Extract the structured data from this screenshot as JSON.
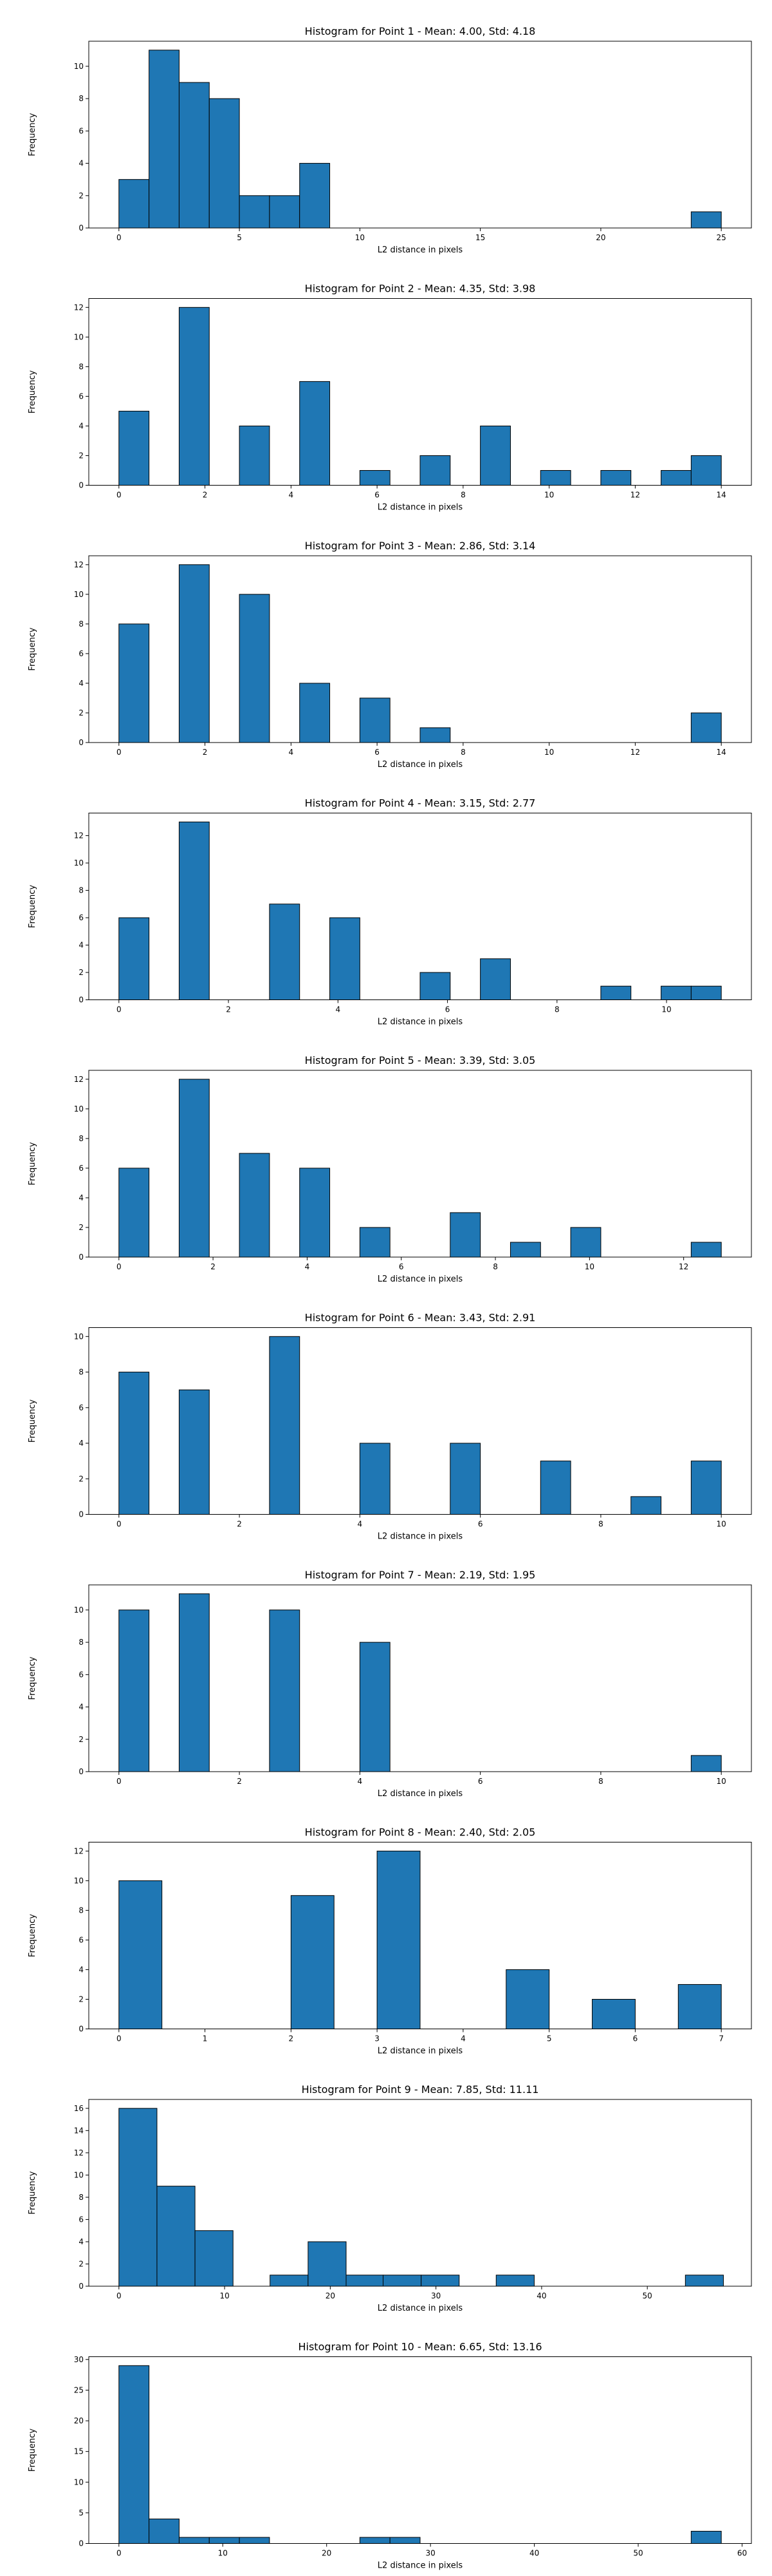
{
  "chart_data": [
    {
      "type": "bar",
      "title": "Histogram for Point 1 - Mean: 4.00, Std: 4.18",
      "xlabel": "L2 distance in pixels",
      "ylabel": "Frequency",
      "xlim": [
        -1.25,
        26.25
      ],
      "ylim": [
        0,
        11.55
      ],
      "xticks": [
        0,
        5,
        10,
        15,
        20,
        25
      ],
      "yticks": [
        0,
        2,
        4,
        6,
        8,
        10
      ],
      "bins": [
        {
          "x0": 0.0,
          "x1": 1.25,
          "count": 3
        },
        {
          "x0": 1.25,
          "x1": 2.5,
          "count": 11
        },
        {
          "x0": 2.5,
          "x1": 3.75,
          "count": 9
        },
        {
          "x0": 3.75,
          "x1": 5.0,
          "count": 8
        },
        {
          "x0": 5.0,
          "x1": 6.25,
          "count": 2
        },
        {
          "x0": 6.25,
          "x1": 7.5,
          "count": 2
        },
        {
          "x0": 7.5,
          "x1": 8.75,
          "count": 4
        },
        {
          "x0": 23.75,
          "x1": 25.0,
          "count": 1
        }
      ]
    },
    {
      "type": "bar",
      "title": "Histogram for Point 2 - Mean: 4.35, Std: 3.98",
      "xlabel": "L2 distance in pixels",
      "ylabel": "Frequency",
      "xlim": [
        -0.7,
        14.7
      ],
      "ylim": [
        0,
        12.6
      ],
      "xticks": [
        0,
        2,
        4,
        6,
        8,
        10,
        12,
        14
      ],
      "yticks": [
        0,
        2,
        4,
        6,
        8,
        10,
        12
      ],
      "bins": [
        {
          "x0": 0.0,
          "x1": 0.7,
          "count": 5
        },
        {
          "x0": 1.4,
          "x1": 2.1,
          "count": 12
        },
        {
          "x0": 2.8,
          "x1": 3.5,
          "count": 4
        },
        {
          "x0": 4.2,
          "x1": 4.9,
          "count": 7
        },
        {
          "x0": 5.6,
          "x1": 6.3,
          "count": 1
        },
        {
          "x0": 7.0,
          "x1": 7.7,
          "count": 2
        },
        {
          "x0": 8.4,
          "x1": 9.1,
          "count": 4
        },
        {
          "x0": 9.8,
          "x1": 10.5,
          "count": 1
        },
        {
          "x0": 11.2,
          "x1": 11.9,
          "count": 1
        },
        {
          "x0": 12.6,
          "x1": 13.3,
          "count": 1
        },
        {
          "x0": 13.3,
          "x1": 14.0,
          "count": 2
        }
      ]
    },
    {
      "type": "bar",
      "title": "Histogram for Point 3 - Mean: 2.86, Std: 3.14",
      "xlabel": "L2 distance in pixels",
      "ylabel": "Frequency",
      "xlim": [
        -0.7,
        14.7
      ],
      "ylim": [
        0,
        12.6
      ],
      "xticks": [
        0,
        2,
        4,
        6,
        8,
        10,
        12,
        14
      ],
      "yticks": [
        0,
        2,
        4,
        6,
        8,
        10,
        12
      ],
      "bins": [
        {
          "x0": 0.0,
          "x1": 0.7,
          "count": 8
        },
        {
          "x0": 1.4,
          "x1": 2.1,
          "count": 12
        },
        {
          "x0": 2.8,
          "x1": 3.5,
          "count": 10
        },
        {
          "x0": 4.2,
          "x1": 4.9,
          "count": 4
        },
        {
          "x0": 5.6,
          "x1": 6.3,
          "count": 3
        },
        {
          "x0": 7.0,
          "x1": 7.7,
          "count": 1
        },
        {
          "x0": 13.3,
          "x1": 14.0,
          "count": 2
        }
      ]
    },
    {
      "type": "bar",
      "title": "Histogram for Point 4 - Mean: 3.15, Std: 2.77",
      "xlabel": "L2 distance in pixels",
      "ylabel": "Frequency",
      "xlim": [
        -0.55,
        11.55
      ],
      "ylim": [
        0,
        13.65
      ],
      "xticks": [
        0,
        2,
        4,
        6,
        8,
        10
      ],
      "yticks": [
        0,
        2,
        4,
        6,
        8,
        10,
        12
      ],
      "bins": [
        {
          "x0": 0.0,
          "x1": 0.55,
          "count": 6
        },
        {
          "x0": 1.1,
          "x1": 1.65,
          "count": 13
        },
        {
          "x0": 2.75,
          "x1": 3.3,
          "count": 7
        },
        {
          "x0": 3.85,
          "x1": 4.4,
          "count": 6
        },
        {
          "x0": 5.5,
          "x1": 6.05,
          "count": 2
        },
        {
          "x0": 6.6,
          "x1": 7.15,
          "count": 3
        },
        {
          "x0": 8.8,
          "x1": 9.35,
          "count": 1
        },
        {
          "x0": 9.9,
          "x1": 10.45,
          "count": 1
        },
        {
          "x0": 10.45,
          "x1": 11.0,
          "count": 1
        }
      ]
    },
    {
      "type": "bar",
      "title": "Histogram for Point 5 - Mean: 3.39, Std: 3.05",
      "xlabel": "L2 distance in pixels",
      "ylabel": "Frequency",
      "xlim": [
        -0.64,
        13.44
      ],
      "ylim": [
        0,
        12.6
      ],
      "xticks": [
        0,
        2,
        4,
        6,
        8,
        10,
        12
      ],
      "yticks": [
        0,
        2,
        4,
        6,
        8,
        10,
        12
      ],
      "bins": [
        {
          "x0": 0.0,
          "x1": 0.64,
          "count": 6
        },
        {
          "x0": 1.28,
          "x1": 1.92,
          "count": 12
        },
        {
          "x0": 2.56,
          "x1": 3.2,
          "count": 7
        },
        {
          "x0": 3.84,
          "x1": 4.48,
          "count": 6
        },
        {
          "x0": 5.12,
          "x1": 5.76,
          "count": 2
        },
        {
          "x0": 7.04,
          "x1": 7.68,
          "count": 3
        },
        {
          "x0": 8.32,
          "x1": 8.96,
          "count": 1
        },
        {
          "x0": 9.6,
          "x1": 10.24,
          "count": 2
        },
        {
          "x0": 12.16,
          "x1": 12.8,
          "count": 1
        }
      ]
    },
    {
      "type": "bar",
      "title": "Histogram for Point 6 - Mean: 3.43, Std: 2.91",
      "xlabel": "L2 distance in pixels",
      "ylabel": "Frequency",
      "xlim": [
        -0.5,
        10.5
      ],
      "ylim": [
        0,
        10.5
      ],
      "xticks": [
        0,
        2,
        4,
        6,
        8,
        10
      ],
      "yticks": [
        0,
        2,
        4,
        6,
        8,
        10
      ],
      "bins": [
        {
          "x0": 0.0,
          "x1": 0.5,
          "count": 8
        },
        {
          "x0": 1.0,
          "x1": 1.5,
          "count": 7
        },
        {
          "x0": 2.5,
          "x1": 3.0,
          "count": 10
        },
        {
          "x0": 4.0,
          "x1": 4.5,
          "count": 4
        },
        {
          "x0": 5.5,
          "x1": 6.0,
          "count": 4
        },
        {
          "x0": 7.0,
          "x1": 7.5,
          "count": 3
        },
        {
          "x0": 8.5,
          "x1": 9.0,
          "count": 1
        },
        {
          "x0": 9.5,
          "x1": 10.0,
          "count": 3
        }
      ]
    },
    {
      "type": "bar",
      "title": "Histogram for Point 7 - Mean: 2.19, Std: 1.95",
      "xlabel": "L2 distance in pixels",
      "ylabel": "Frequency",
      "xlim": [
        -0.5,
        10.5
      ],
      "ylim": [
        0,
        11.55
      ],
      "xticks": [
        0,
        2,
        4,
        6,
        8,
        10
      ],
      "yticks": [
        0,
        2,
        4,
        6,
        8,
        10
      ],
      "bins": [
        {
          "x0": 0.0,
          "x1": 0.5,
          "count": 10
        },
        {
          "x0": 1.0,
          "x1": 1.5,
          "count": 11
        },
        {
          "x0": 2.5,
          "x1": 3.0,
          "count": 10
        },
        {
          "x0": 4.0,
          "x1": 4.5,
          "count": 8
        },
        {
          "x0": 9.5,
          "x1": 10.0,
          "count": 1
        }
      ]
    },
    {
      "type": "bar",
      "title": "Histogram for Point 8 - Mean: 2.40, Std: 2.05",
      "xlabel": "L2 distance in pixels",
      "ylabel": "Frequency",
      "xlim": [
        -0.35,
        7.35
      ],
      "ylim": [
        0,
        12.6
      ],
      "xticks": [
        0,
        1,
        2,
        3,
        4,
        5,
        6,
        7
      ],
      "yticks": [
        0,
        2,
        4,
        6,
        8,
        10,
        12
      ],
      "bins": [
        {
          "x0": 0.0,
          "x1": 0.5,
          "count": 10
        },
        {
          "x0": 2.0,
          "x1": 2.5,
          "count": 9
        },
        {
          "x0": 3.0,
          "x1": 3.5,
          "count": 12
        },
        {
          "x0": 4.5,
          "x1": 5.0,
          "count": 4
        },
        {
          "x0": 5.5,
          "x1": 6.0,
          "count": 2
        },
        {
          "x0": 6.5,
          "x1": 7.0,
          "count": 3
        }
      ]
    },
    {
      "type": "bar",
      "title": "Histogram for Point 9 - Mean: 7.85, Std: 11.11",
      "xlabel": "L2 distance in pixels",
      "ylabel": "Frequency",
      "xlim": [
        -2.85,
        59.85
      ],
      "ylim": [
        0,
        16.8
      ],
      "xticks": [
        0,
        10,
        20,
        30,
        40,
        50
      ],
      "yticks": [
        0,
        2,
        4,
        6,
        8,
        10,
        12,
        14,
        16
      ],
      "bins": [
        {
          "x0": 0.0,
          "x1": 3.6,
          "count": 16
        },
        {
          "x0": 3.6,
          "x1": 7.2,
          "count": 9
        },
        {
          "x0": 7.2,
          "x1": 10.8,
          "count": 5
        },
        {
          "x0": 14.3,
          "x1": 17.9,
          "count": 1
        },
        {
          "x0": 17.9,
          "x1": 21.5,
          "count": 4
        },
        {
          "x0": 21.5,
          "x1": 25.0,
          "count": 1
        },
        {
          "x0": 25.0,
          "x1": 28.6,
          "count": 1
        },
        {
          "x0": 28.6,
          "x1": 32.2,
          "count": 1
        },
        {
          "x0": 35.7,
          "x1": 39.3,
          "count": 1
        },
        {
          "x0": 53.6,
          "x1": 57.2,
          "count": 1
        }
      ]
    },
    {
      "type": "bar",
      "title": "Histogram for Point 10 - Mean: 6.65, Std: 13.16",
      "xlabel": "L2 distance in pixels",
      "ylabel": "Frequency",
      "xlim": [
        -2.9,
        60.9
      ],
      "ylim": [
        0,
        30.45
      ],
      "xticks": [
        0,
        10,
        20,
        30,
        40,
        50,
        60
      ],
      "yticks": [
        0,
        5,
        10,
        15,
        20,
        25,
        30
      ],
      "bins": [
        {
          "x0": 0.0,
          "x1": 2.9,
          "count": 29
        },
        {
          "x0": 2.9,
          "x1": 5.8,
          "count": 4
        },
        {
          "x0": 5.8,
          "x1": 8.7,
          "count": 1
        },
        {
          "x0": 8.7,
          "x1": 11.6,
          "count": 1
        },
        {
          "x0": 11.6,
          "x1": 14.5,
          "count": 1
        },
        {
          "x0": 23.2,
          "x1": 26.1,
          "count": 1
        },
        {
          "x0": 26.1,
          "x1": 29.0,
          "count": 1
        },
        {
          "x0": 55.1,
          "x1": 58.0,
          "count": 2
        }
      ]
    }
  ]
}
